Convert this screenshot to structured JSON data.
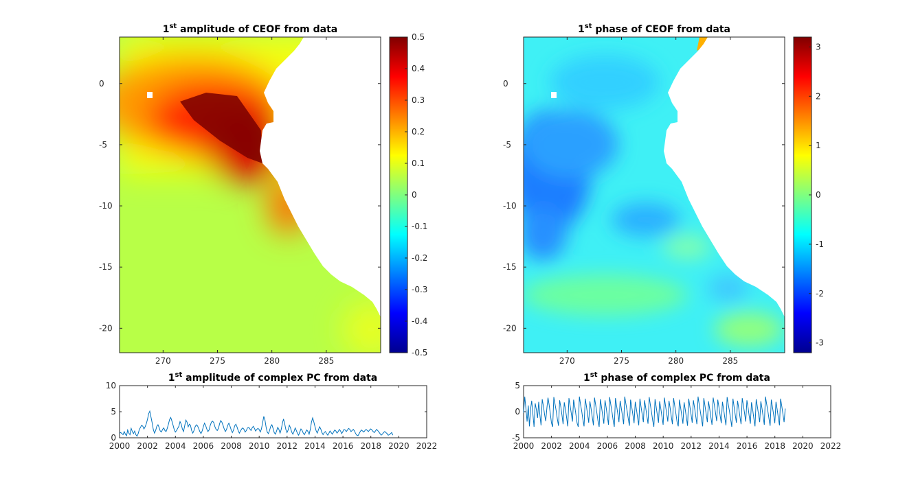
{
  "chart_data": [
    {
      "type": "heatmap",
      "title_sup": "st",
      "title": {
        "pre": "1",
        "sup": "st",
        "post": " amplitude of CEOF from data"
      },
      "x_ticks": [
        "270",
        "275",
        "280",
        "285"
      ],
      "x_tick_values": [
        270,
        275,
        280,
        285
      ],
      "y_ticks": [
        "0",
        "-5",
        "-10",
        "-15",
        "-20"
      ],
      "y_tick_values": [
        0,
        -5,
        -10,
        -15,
        -20
      ],
      "xlim": [
        266,
        290
      ],
      "ylim": [
        -22,
        3.8
      ],
      "colormap": "jet",
      "colorbar": {
        "ticks": [
          "0.5",
          "0.4",
          "0.3",
          "0.2",
          "0.1",
          "0",
          "-0.1",
          "-0.2",
          "-0.3",
          "-0.4",
          "-0.5"
        ],
        "range": [
          -0.5,
          0.5
        ]
      }
    },
    {
      "type": "heatmap",
      "title": {
        "pre": "1",
        "sup": "st",
        "post": " phase of CEOF from data"
      },
      "x_ticks": [
        "270",
        "275",
        "280",
        "285"
      ],
      "x_tick_values": [
        270,
        275,
        280,
        285
      ],
      "y_ticks": [
        "0",
        "-5",
        "-10",
        "-15",
        "-20"
      ],
      "y_tick_values": [
        0,
        -5,
        -10,
        -15,
        -20
      ],
      "xlim": [
        266,
        290
      ],
      "ylim": [
        -22,
        3.8
      ],
      "colormap": "jet",
      "colorbar": {
        "ticks": [
          "3",
          "2",
          "1",
          "0",
          "-1",
          "-2",
          "-3"
        ],
        "range": [
          -3.2,
          3.2
        ]
      }
    },
    {
      "type": "line",
      "title": {
        "pre": "1",
        "sup": "st",
        "post": " amplitude of complex PC from data"
      },
      "x_ticks": [
        "2000",
        "2002",
        "2004",
        "2006",
        "2008",
        "2010",
        "2012",
        "2014",
        "2016",
        "2018",
        "2020",
        "2022"
      ],
      "y_ticks": [
        "10",
        "5",
        "0"
      ],
      "xlim": [
        2000,
        2022
      ],
      "ylim": [
        0,
        10
      ],
      "color": "#0072bd",
      "series": [
        {
          "x_start": 2000.0,
          "x_step": 0.0833,
          "values": [
            0.9,
            1.0,
            0.8,
            0.6,
            1.2,
            0.7,
            0.4,
            1.5,
            0.9,
            0.6,
            1.8,
            1.2,
            0.8,
            1.3,
            0.6,
            0.3,
            0.8,
            1.6,
            2.0,
            2.4,
            2.2,
            1.7,
            2.1,
            2.7,
            3.5,
            4.6,
            5.1,
            4.0,
            2.9,
            1.6,
            0.9,
            1.4,
            2.2,
            2.5,
            2.0,
            1.3,
            1.1,
            1.6,
            1.9,
            1.4,
            1.2,
            1.8,
            2.6,
            3.5,
            3.9,
            3.2,
            2.4,
            1.6,
            1.1,
            1.4,
            1.8,
            2.2,
            3.1,
            2.6,
            1.7,
            1.2,
            2.3,
            3.4,
            3.0,
            2.1,
            2.6,
            2.4,
            1.4,
            0.9,
            1.4,
            2.1,
            2.5,
            2.3,
            1.8,
            1.2,
            0.8,
            1.3,
            2.1,
            2.8,
            2.4,
            1.7,
            1.2,
            1.5,
            2.4,
            3.0,
            3.2,
            2.9,
            2.1,
            1.6,
            1.4,
            1.8,
            2.7,
            3.3,
            3.0,
            2.4,
            1.7,
            1.2,
            1.6,
            2.4,
            2.8,
            2.2,
            1.5,
            1.0,
            1.5,
            2.3,
            2.6,
            2.1,
            1.4,
            0.9,
            1.3,
            1.7,
            1.9,
            1.6,
            1.1,
            1.4,
            1.9,
            2.0,
            1.7,
            1.4,
            1.9,
            2.2,
            1.8,
            1.3,
            1.6,
            1.8,
            1.6,
            1.1,
            1.7,
            2.9,
            4.1,
            3.4,
            2.0,
            1.1,
            0.8,
            1.4,
            2.2,
            2.5,
            1.8,
            1.0,
            0.7,
            1.3,
            2.0,
            1.6,
            0.9,
            1.6,
            2.8,
            3.6,
            2.7,
            1.6,
            1.0,
            1.5,
            2.4,
            1.9,
            1.1,
            0.7,
            1.2,
            1.9,
            1.4,
            0.8,
            0.5,
            1.1,
            1.7,
            1.4,
            0.9,
            0.6,
            1.1,
            1.5,
            1.2,
            0.7,
            1.6,
            3.0,
            3.8,
            3.1,
            2.2,
            1.4,
            0.9,
            1.5,
            2.1,
            1.7,
            1.0,
            0.6,
            1.0,
            1.2,
            0.8,
            0.5,
            0.9,
            1.3,
            1.0,
            0.7,
            1.1,
            1.5,
            1.3,
            0.9,
            1.2,
            1.6,
            1.3,
            0.8,
            1.2,
            1.6,
            1.5,
            1.2,
            1.5,
            1.8,
            1.6,
            1.2,
            1.4,
            1.6,
            1.3,
            0.8,
            0.5,
            0.4,
            0.8,
            1.2,
            1.5,
            1.3,
            1.1,
            1.4,
            1.6,
            1.4,
            1.2,
            1.5,
            1.7,
            1.5,
            1.2,
            1.0,
            1.3,
            1.6,
            1.4,
            1.1,
            0.8,
            0.5,
            0.7,
            1.0,
            1.2,
            1.0,
            0.8,
            0.5,
            0.6,
            0.8,
            1.0,
            0.5
          ]
        }
      ]
    },
    {
      "type": "line",
      "title": {
        "pre": "1",
        "sup": "st",
        "post": " phase of complex PC from data"
      },
      "x_ticks": [
        "2000",
        "2002",
        "2004",
        "2006",
        "2008",
        "2010",
        "2012",
        "2014",
        "2016",
        "2018",
        "2020",
        "2022"
      ],
      "y_ticks": [
        "5",
        "0",
        "-5"
      ],
      "xlim": [
        2000,
        2022
      ],
      "ylim": [
        -5,
        5
      ],
      "color": "#0072bd",
      "series": [
        {
          "x_start": 2000.0,
          "x_step": 0.0833,
          "values": [
            -0.2,
            2.9,
            0.6,
            -1.9,
            1.2,
            -2.8,
            0.5,
            2.1,
            -0.4,
            -2.9,
            1.6,
            0.4,
            -1.2,
            1.9,
            -0.6,
            -2.6,
            2.4,
            1.1,
            -0.5,
            -1.8,
            0.7,
            2.7,
            1.3,
            -0.4,
            -2.2,
            -2.9,
            2.8,
            1.5,
            0.2,
            -1.4,
            -2.7,
            2.2,
            0.9,
            -0.7,
            -2.4,
            1.8,
            0.5,
            -1.1,
            -2.8,
            2.6,
            1.2,
            -0.3,
            -1.9,
            2.3,
            1.0,
            -0.6,
            -2.2,
            -2.9,
            2.9,
            1.4,
            0.1,
            -1.5,
            -2.8,
            2.5,
            1.1,
            -0.5,
            -2.1,
            2.0,
            0.6,
            -1.0,
            -2.6,
            2.7,
            1.3,
            -0.2,
            -1.8,
            -2.9,
            2.4,
            0.9,
            -0.7,
            -2.3,
            2.2,
            0.8,
            -0.9,
            -2.5,
            2.8,
            1.4,
            0.0,
            -1.6,
            -2.9,
            2.6,
            1.1,
            -0.4,
            -2.0,
            2.1,
            0.7,
            -0.8,
            -2.4,
            2.9,
            1.5,
            0.2,
            -1.3,
            -2.7,
            2.3,
            0.9,
            -0.6,
            -2.2,
            1.9,
            0.5,
            -1.1,
            -2.6,
            2.5,
            1.0,
            -0.5,
            -2.0,
            2.2,
            0.8,
            -0.8,
            -2.3,
            2.8,
            1.3,
            -0.1,
            -1.7,
            -2.9,
            2.4,
            1.0,
            -0.6,
            -2.1,
            2.0,
            0.6,
            -1.0,
            -2.5,
            2.7,
            1.2,
            -0.3,
            -1.9,
            2.1,
            0.7,
            -0.9,
            -2.4,
            2.6,
            1.1,
            -0.4,
            -2.0,
            -2.8,
            2.3,
            0.8,
            -0.7,
            -2.3,
            1.8,
            0.4,
            -1.2,
            -2.7,
            2.5,
            1.0,
            -0.5,
            -2.1,
            2.2,
            0.8,
            -0.8,
            -2.4,
            2.9,
            1.4,
            0.0,
            -1.5,
            -2.8,
            2.6,
            1.1,
            -0.4,
            -2.0,
            2.0,
            0.6,
            -1.0,
            -2.5,
            2.7,
            1.3,
            -0.2,
            -1.8,
            2.3,
            0.9,
            -0.7,
            -2.2,
            1.9,
            0.5,
            -1.1,
            -2.6,
            2.8,
            1.4,
            0.1,
            -1.4,
            -2.9,
            2.5,
            1.0,
            -0.6,
            -2.1,
            2.1,
            0.7,
            -0.9,
            -2.4,
            2.6,
            1.2,
            -0.3,
            -1.9,
            2.2,
            0.8,
            -0.8,
            -2.3,
            1.8,
            0.4,
            -1.3,
            -2.8,
            2.4,
            1.0,
            -0.5,
            -2.0,
            2.0,
            0.6,
            -1.0,
            -2.5,
            2.9,
            1.5,
            0.2,
            -1.3,
            -2.7,
            2.3,
            0.9,
            -0.6,
            -2.2,
            1.9,
            0.5,
            -1.1,
            -2.6,
            2.5,
            1.1,
            -0.4,
            -2.0,
            0.6
          ]
        }
      ]
    }
  ]
}
